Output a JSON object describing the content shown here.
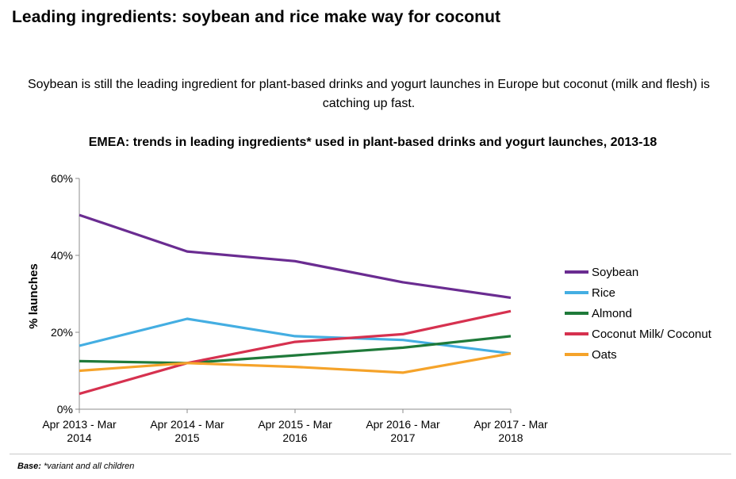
{
  "header": {
    "title": "Leading ingredients: soybean and rice make way for coconut",
    "subtitle": "Soybean is still the leading ingredient for plant-based drinks and yogurt launches in Europe but coconut (milk and flesh) is catching up fast."
  },
  "footnote": {
    "label": "Base:",
    "text": "*variant and all children"
  },
  "chart_data": {
    "type": "line",
    "title": "EMEA: trends in leading ingredients* used in plant-based drinks and yogurt launches, 2013-18",
    "xlabel": "",
    "ylabel": "% launches",
    "ylim": [
      0,
      60
    ],
    "yticks": [
      0,
      20,
      40,
      60
    ],
    "ytick_labels": [
      "0%",
      "20%",
      "40%",
      "60%"
    ],
    "grid": false,
    "legend_position": "right",
    "categories": [
      [
        "Apr 2013 - Mar",
        "2014"
      ],
      [
        "Apr 2014 - Mar",
        "2015"
      ],
      [
        "Apr 2015 - Mar",
        "2016"
      ],
      [
        "Apr 2016 - Mar",
        "2017"
      ],
      [
        "Apr 2017 - Mar",
        "2018"
      ]
    ],
    "series": [
      {
        "name": "Soybean",
        "color": "#6a2c91",
        "values": [
          50.5,
          41,
          38.5,
          33,
          29
        ]
      },
      {
        "name": "Rice",
        "color": "#44aee2",
        "values": [
          16.5,
          23.5,
          19,
          18,
          14.5
        ]
      },
      {
        "name": "Almond",
        "color": "#1f7a3a",
        "values": [
          12.5,
          12,
          14,
          16,
          19
        ]
      },
      {
        "name": "Coconut Milk/ Coconut",
        "color": "#d6314f",
        "values": [
          4,
          12,
          17.5,
          19.5,
          25.5
        ]
      },
      {
        "name": "Oats",
        "color": "#f5a32a",
        "values": [
          10,
          12,
          11,
          9.5,
          14.5
        ]
      }
    ]
  }
}
